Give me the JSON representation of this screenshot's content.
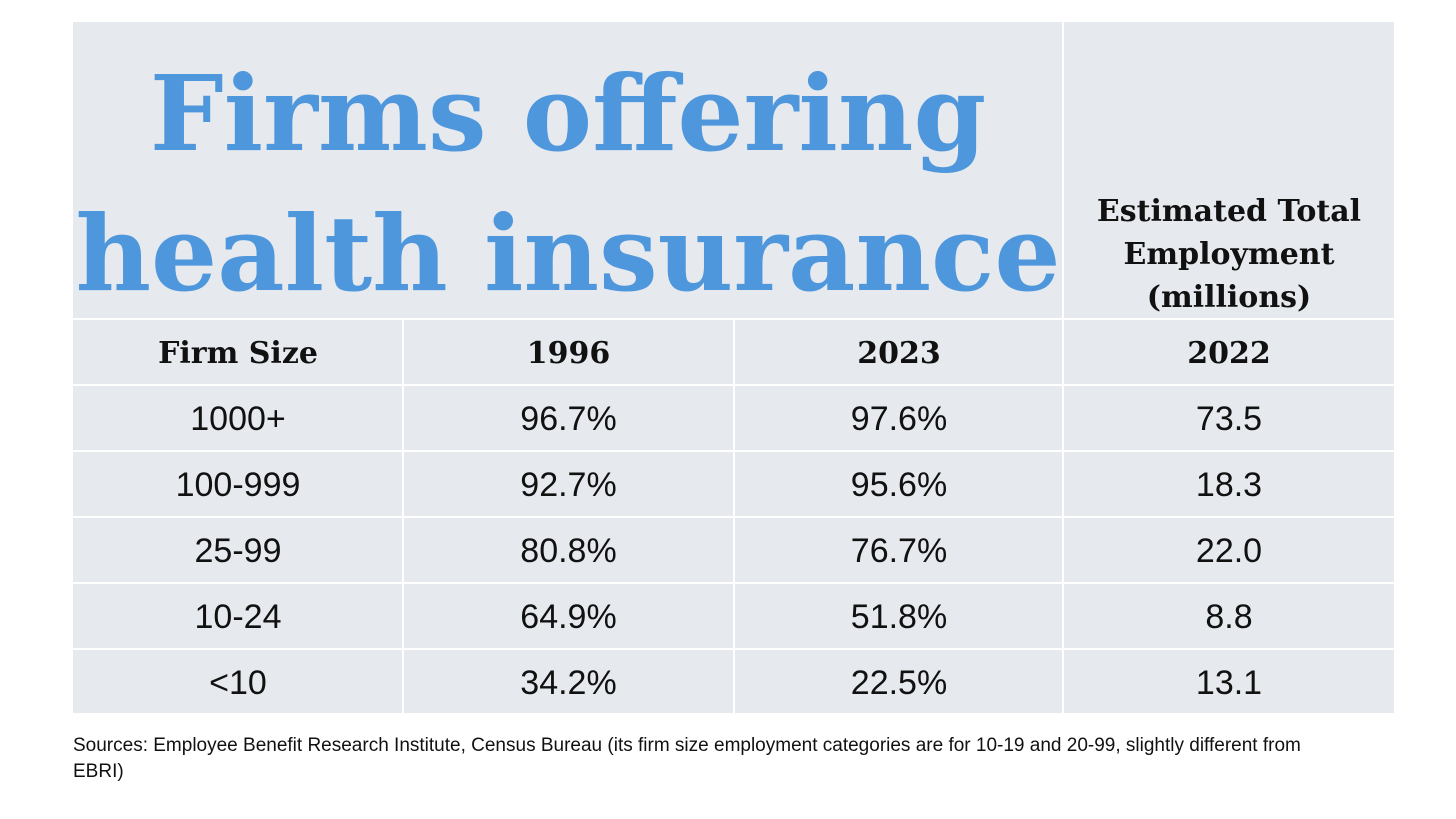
{
  "chart_data": {
    "type": "table",
    "title_lines": [
      "Firms offering",
      "health insurance"
    ],
    "employment_header_lines": [
      "Estimated Total",
      "Employment",
      "(millions)"
    ],
    "columns": [
      "Firm Size",
      "1996",
      "2023",
      "2022"
    ],
    "rows": [
      [
        "1000+",
        "96.7%",
        "97.6%",
        "73.5"
      ],
      [
        "100-999",
        "92.7%",
        "95.6%",
        "18.3"
      ],
      [
        "25-99",
        "80.8%",
        "76.7%",
        "22.0"
      ],
      [
        "10-24",
        "64.9%",
        "51.8%",
        "8.8"
      ],
      [
        "<10",
        "34.2%",
        "22.5%",
        "13.1"
      ]
    ]
  },
  "footer": {
    "sources": "Sources: Employee Benefit Research Institute, Census Bureau (its firm size employment categories are for 10-19 and 20-99, slightly different from EBRI)"
  },
  "colors": {
    "title": "#4f97dc",
    "table_background": "#e6e9ed",
    "grid": "#ffffff",
    "text": "#111111"
  }
}
